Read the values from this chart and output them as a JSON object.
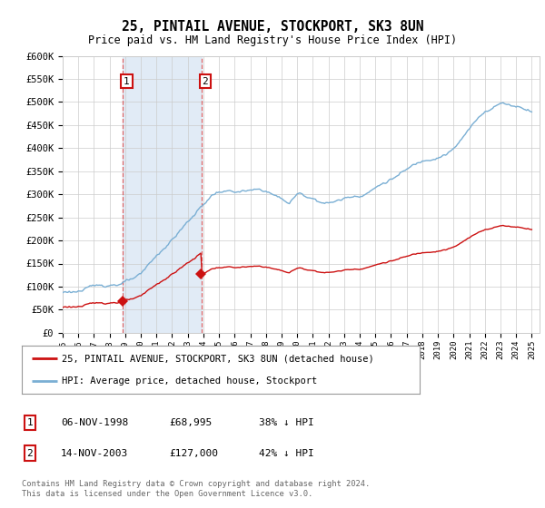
{
  "title": "25, PINTAIL AVENUE, STOCKPORT, SK3 8UN",
  "subtitle": "Price paid vs. HM Land Registry's House Price Index (HPI)",
  "legend_line1": "25, PINTAIL AVENUE, STOCKPORT, SK3 8UN (detached house)",
  "legend_line2": "HPI: Average price, detached house, Stockport",
  "footnote": "Contains HM Land Registry data © Crown copyright and database right 2024.\nThis data is licensed under the Open Government Licence v3.0.",
  "table": [
    {
      "num": "1",
      "date": "06-NOV-1998",
      "price": "£68,995",
      "pct": "38% ↓ HPI"
    },
    {
      "num": "2",
      "date": "14-NOV-2003",
      "price": "£127,000",
      "pct": "42% ↓ HPI"
    }
  ],
  "sale1_year": 1998.85,
  "sale1_price": 68995,
  "sale2_year": 2003.87,
  "sale2_price": 127000,
  "hpi_color": "#7aafd4",
  "price_color": "#cc1111",
  "shade_color": "#dce8f5",
  "ylim": [
    0,
    600000
  ],
  "yticks": [
    0,
    50000,
    100000,
    150000,
    200000,
    250000,
    300000,
    350000,
    400000,
    450000,
    500000,
    550000,
    600000
  ],
  "background_color": "#ffffff",
  "grid_color": "#cccccc"
}
